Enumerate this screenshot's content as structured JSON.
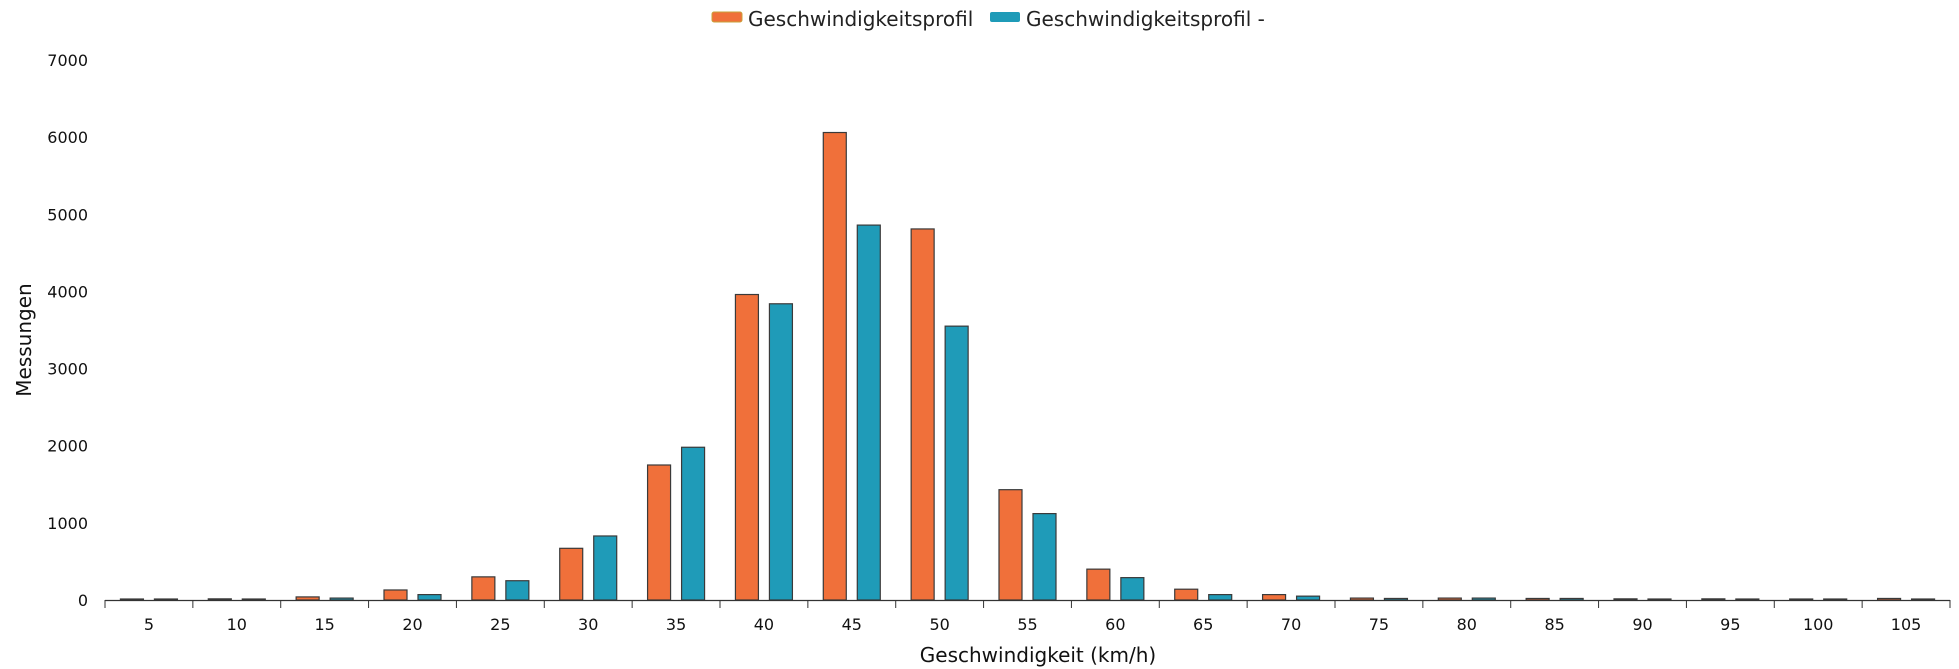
{
  "chart_data": {
    "type": "bar",
    "title": "",
    "xlabel": "Geschwindigkeit (km/h)",
    "ylabel": "Messungen",
    "ylim": [
      0,
      7000
    ],
    "yticks": [
      0,
      1000,
      2000,
      3000,
      4000,
      5000,
      6000,
      7000
    ],
    "grid": false,
    "legend_position": "top-center",
    "categories": [
      "5",
      "10",
      "15",
      "20",
      "25",
      "30",
      "35",
      "40",
      "45",
      "50",
      "55",
      "60",
      "65",
      "70",
      "75",
      "80",
      "85",
      "90",
      "95",
      "100",
      "105"
    ],
    "series": [
      {
        "name": "Geschwindigkeitsprofil",
        "color": "#f0703a",
        "values": [
          5,
          15,
          40,
          130,
          300,
          670,
          1750,
          3960,
          6060,
          4810,
          1430,
          400,
          140,
          70,
          25,
          25,
          20,
          15,
          15,
          10,
          20
        ]
      },
      {
        "name": "Geschwindigkeitsprofil -",
        "color": "#1f9bb8",
        "values": [
          3,
          10,
          25,
          70,
          250,
          830,
          1980,
          3840,
          4860,
          3550,
          1120,
          290,
          70,
          50,
          20,
          25,
          20,
          10,
          10,
          10,
          10
        ]
      }
    ]
  }
}
